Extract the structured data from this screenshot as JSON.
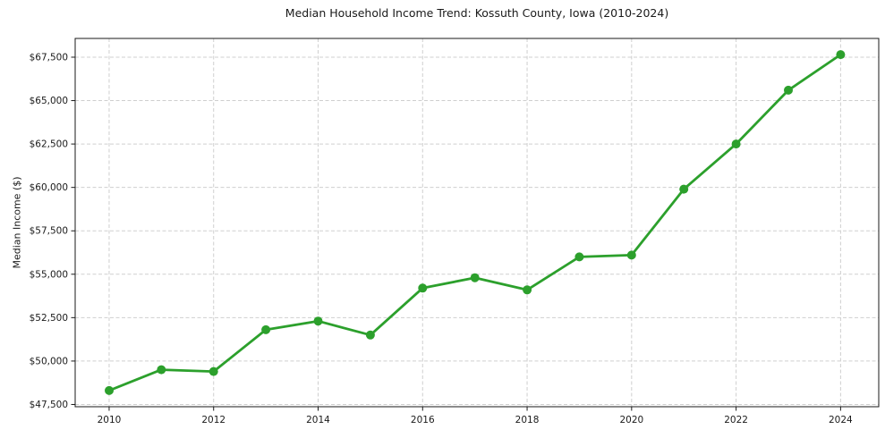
{
  "chart_data": {
    "type": "line",
    "title": "Median Household Income Trend: Kossuth County, Iowa (2010-2024)",
    "xlabel": "",
    "ylabel": "Median Income ($)",
    "x": [
      2010,
      2011,
      2012,
      2013,
      2014,
      2015,
      2016,
      2017,
      2018,
      2019,
      2020,
      2021,
      2022,
      2023,
      2024
    ],
    "series": [
      {
        "name": "Median Household Income",
        "values": [
          48300,
          49500,
          49400,
          51800,
          52300,
          51500,
          54200,
          54800,
          54100,
          56000,
          56100,
          59900,
          62500,
          65600,
          67650
        ]
      }
    ],
    "xticks": [
      2010,
      2012,
      2014,
      2016,
      2018,
      2020,
      2022,
      2024
    ],
    "xtick_labels": [
      "2010",
      "2012",
      "2014",
      "2016",
      "2018",
      "2020",
      "2022",
      "2024"
    ],
    "yticks": [
      47500,
      50000,
      52500,
      55000,
      57500,
      60000,
      62500,
      65000,
      67500
    ],
    "ytick_labels": [
      "$47,500",
      "$50,000",
      "$52,500",
      "$55,000",
      "$57,500",
      "$60,000",
      "$62,500",
      "$65,000",
      "$67,500"
    ],
    "xlim": [
      2009.35,
      2024.73
    ],
    "ylim": [
      47370,
      68580
    ],
    "grid": true,
    "grid_style": "dashed",
    "legend": "none",
    "colors": {
      "line": "#2ca02c",
      "marker": "#2ca02c",
      "grid": "#cfcfcf",
      "spine": "#1a1a1a",
      "text": "#1a1a1a",
      "background": "#ffffff"
    },
    "marker_shape": "circle"
  }
}
